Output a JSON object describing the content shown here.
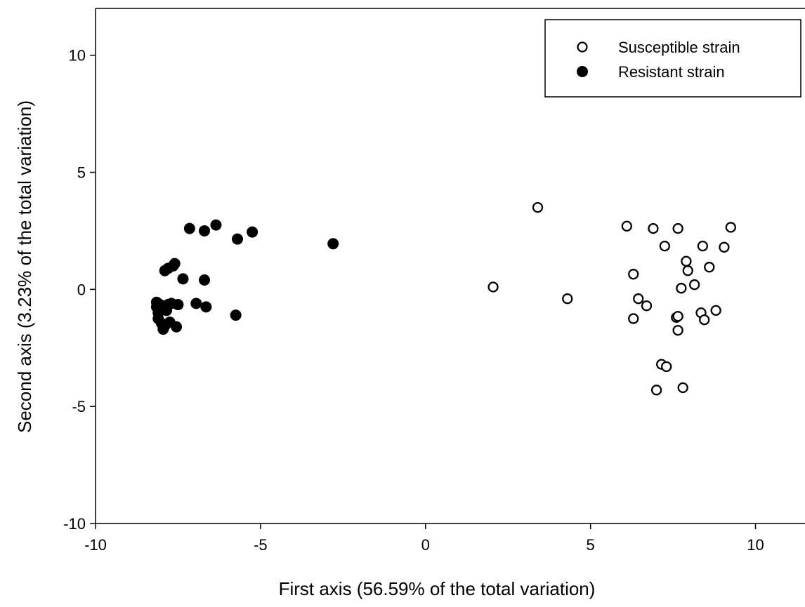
{
  "chart_data": {
    "type": "scatter",
    "xlabel": "First axis (56.59% of the total variation)",
    "ylabel": "Second axis (3.23% of the total variation)",
    "xlim": [
      -10,
      11.5
    ],
    "ylim": [
      -10,
      12
    ],
    "x_ticks": [
      -10,
      -5,
      0,
      5,
      10
    ],
    "y_ticks": [
      -10,
      -5,
      0,
      5,
      10
    ],
    "tick_labels_x": [
      "-10",
      "-5",
      "0",
      "5",
      "10"
    ],
    "tick_labels_y": [
      "-10",
      "-5",
      "0",
      "5",
      "10"
    ],
    "grid": false,
    "legend_position": "top-right",
    "series": [
      {
        "name": "Susceptible strain",
        "marker": "open-circle",
        "color": "#000000",
        "points": [
          [
            2.05,
            0.1
          ],
          [
            3.4,
            3.5
          ],
          [
            4.3,
            -0.4
          ],
          [
            6.1,
            2.7
          ],
          [
            6.3,
            0.65
          ],
          [
            6.3,
            -1.25
          ],
          [
            6.45,
            -0.4
          ],
          [
            6.7,
            -0.7
          ],
          [
            6.9,
            2.6
          ],
          [
            7.0,
            -4.3
          ],
          [
            7.15,
            -3.2
          ],
          [
            7.25,
            1.85
          ],
          [
            7.3,
            -3.3
          ],
          [
            7.6,
            -1.2
          ],
          [
            7.65,
            -1.15
          ],
          [
            7.65,
            -1.75
          ],
          [
            7.65,
            2.6
          ],
          [
            7.75,
            0.05
          ],
          [
            7.8,
            -4.2
          ],
          [
            7.9,
            1.2
          ],
          [
            7.95,
            0.8
          ],
          [
            8.15,
            0.2
          ],
          [
            8.35,
            -1.0
          ],
          [
            8.4,
            1.85
          ],
          [
            8.45,
            -1.3
          ],
          [
            8.6,
            0.95
          ],
          [
            8.8,
            -0.9
          ],
          [
            9.05,
            1.8
          ],
          [
            9.25,
            2.65
          ]
        ]
      },
      {
        "name": "Resistant strain",
        "marker": "filled-circle",
        "color": "#000000",
        "points": [
          [
            -8.15,
            -0.55
          ],
          [
            -8.15,
            -0.75
          ],
          [
            -8.1,
            -1.0
          ],
          [
            -8.1,
            -1.25
          ],
          [
            -8.05,
            -0.65
          ],
          [
            -8.0,
            -1.45
          ],
          [
            -7.95,
            -1.7
          ],
          [
            -7.9,
            -1.55
          ],
          [
            -7.9,
            0.8
          ],
          [
            -7.85,
            -0.9
          ],
          [
            -7.8,
            -0.65
          ],
          [
            -7.8,
            0.9
          ],
          [
            -7.75,
            -1.4
          ],
          [
            -7.7,
            -0.6
          ],
          [
            -7.65,
            1.0
          ],
          [
            -7.6,
            1.1
          ],
          [
            -7.55,
            -1.6
          ],
          [
            -7.5,
            -0.65
          ],
          [
            -7.35,
            0.45
          ],
          [
            -7.15,
            2.6
          ],
          [
            -6.95,
            -0.6
          ],
          [
            -6.7,
            2.5
          ],
          [
            -6.7,
            0.4
          ],
          [
            -6.65,
            -0.75
          ],
          [
            -6.35,
            2.75
          ],
          [
            -5.75,
            -1.1
          ],
          [
            -5.7,
            2.15
          ],
          [
            -5.25,
            2.45
          ],
          [
            -2.8,
            1.95
          ]
        ]
      }
    ]
  }
}
